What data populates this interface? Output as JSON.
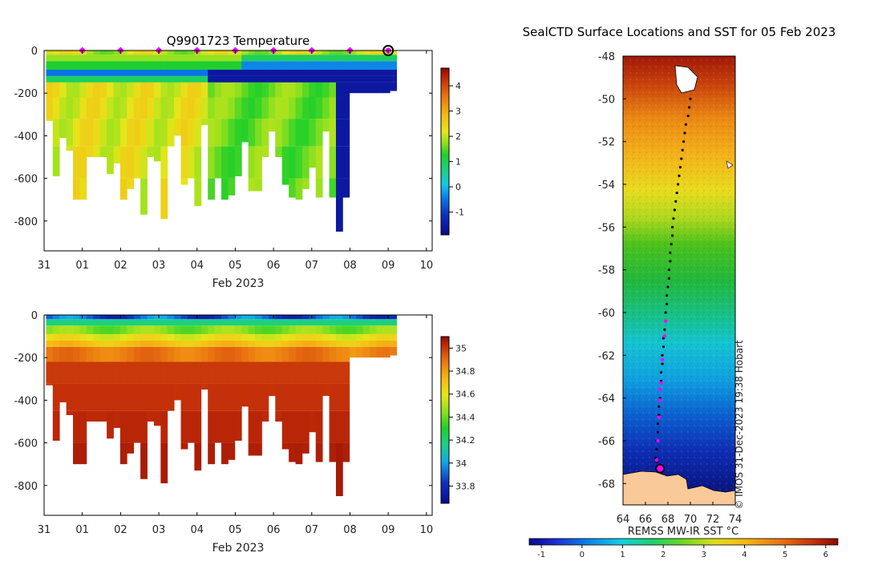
{
  "colors": {
    "land": "#f9c99a",
    "track_points": "#000000",
    "surface_markers": "#ff00ff",
    "latest_position": "#ff00ff"
  },
  "chart_data": [
    {
      "type": "heatmap",
      "id": "temperature-section",
      "title": "Q9901723  Temperature",
      "xlabel": "Feb 2023",
      "ylabel": "",
      "x_tick_labels": [
        "31",
        "01",
        "02",
        "03",
        "04",
        "05",
        "06",
        "07",
        "08",
        "09",
        "10"
      ],
      "x_ticks_day": [
        0,
        1,
        2,
        3,
        4,
        5,
        6,
        7,
        8,
        9,
        10
      ],
      "xlim_day": [
        0,
        10.15
      ],
      "y_ticks": [
        0,
        -200,
        -400,
        -600,
        -800
      ],
      "ylim": [
        -940,
        0
      ],
      "colorbar_ticks": [
        -1,
        0,
        1,
        2,
        3,
        4
      ],
      "colorbar_range": [
        -1.9,
        4.7
      ],
      "surface_marker_days": [
        1,
        2,
        3,
        4,
        5,
        6,
        7,
        8,
        9
      ],
      "profile_max_depths": [
        330,
        590,
        410,
        470,
        700,
        700,
        500,
        500,
        500,
        580,
        530,
        700,
        650,
        600,
        770,
        500,
        520,
        790,
        450,
        400,
        630,
        600,
        730,
        350,
        700,
        600,
        700,
        680,
        590,
        430,
        660,
        660,
        500,
        380,
        500,
        630,
        690,
        700,
        650,
        550,
        690,
        380,
        690,
        850,
        690,
        200,
        200,
        200,
        200,
        200,
        200,
        190
      ],
      "bottom_layer": {
        "warm_until_day": 4.2,
        "cold_from_day": 4.2
      }
    },
    {
      "type": "heatmap",
      "id": "salinity-section",
      "title": "",
      "xlabel": "Feb 2023",
      "ylabel": "",
      "x_tick_labels": [
        "31",
        "01",
        "02",
        "03",
        "04",
        "05",
        "06",
        "07",
        "08",
        "09",
        "10"
      ],
      "x_ticks_day": [
        0,
        1,
        2,
        3,
        4,
        5,
        6,
        7,
        8,
        9,
        10
      ],
      "xlim_day": [
        0,
        10.15
      ],
      "y_ticks": [
        0,
        -200,
        -400,
        -600,
        -800
      ],
      "ylim": [
        -940,
        0
      ],
      "colorbar_ticks": [
        33.8,
        34,
        34.2,
        34.4,
        34.6,
        34.8,
        35
      ],
      "colorbar_tick_labels": [
        "33.8",
        "34",
        "34.2",
        "34.4",
        "34.6",
        "34.8",
        "35"
      ],
      "colorbar_range": [
        33.65,
        35.1
      ]
    },
    {
      "type": "heatmap",
      "id": "sst-map",
      "title": "SealCTD Surface Locations and SST for 05 Feb 2023",
      "xlabel": "",
      "ylabel": "",
      "x_ticks": [
        64,
        66,
        68,
        70,
        72,
        74
      ],
      "xlim": [
        64,
        74
      ],
      "y_ticks": [
        -48,
        -50,
        -52,
        -54,
        -56,
        -58,
        -60,
        -62,
        -64,
        -66,
        -68
      ],
      "ylim": [
        -69,
        -48
      ],
      "credit": "© IMOS 31-Dec-2023 19:38 Hobart",
      "colorbar_label": "REMSS MW-IR SST °C",
      "colorbar_ticks": [
        -1,
        0,
        1,
        2,
        3,
        4,
        5,
        6
      ],
      "colorbar_range": [
        -1.3,
        6.3
      ],
      "track": [
        [
          70.0,
          -50.0
        ],
        [
          69.9,
          -50.4
        ],
        [
          69.8,
          -50.8
        ],
        [
          69.6,
          -51.2
        ],
        [
          69.5,
          -51.6
        ],
        [
          69.4,
          -52.0
        ],
        [
          69.3,
          -52.4
        ],
        [
          69.2,
          -52.8
        ],
        [
          69.1,
          -53.2
        ],
        [
          69.0,
          -53.6
        ],
        [
          68.9,
          -54.0
        ],
        [
          68.8,
          -54.4
        ],
        [
          68.7,
          -54.8
        ],
        [
          68.6,
          -55.2
        ],
        [
          68.5,
          -55.6
        ],
        [
          68.4,
          -56.0
        ],
        [
          68.4,
          -56.4
        ],
        [
          68.3,
          -56.8
        ],
        [
          68.2,
          -57.2
        ],
        [
          68.2,
          -57.6
        ],
        [
          68.1,
          -58.0
        ],
        [
          68.1,
          -58.4
        ],
        [
          68.0,
          -58.8
        ],
        [
          67.9,
          -59.2
        ],
        [
          67.9,
          -59.6
        ],
        [
          67.8,
          -60.0
        ],
        [
          67.8,
          -60.4
        ],
        [
          67.7,
          -60.8
        ],
        [
          67.6,
          -61.2
        ],
        [
          67.6,
          -61.6
        ],
        [
          67.5,
          -62.0
        ],
        [
          67.5,
          -62.4
        ],
        [
          67.4,
          -62.8
        ],
        [
          67.4,
          -63.2
        ],
        [
          67.3,
          -63.6
        ],
        [
          67.3,
          -64.0
        ],
        [
          67.2,
          -64.4
        ],
        [
          67.2,
          -64.8
        ],
        [
          67.1,
          -65.2
        ],
        [
          67.1,
          -65.6
        ],
        [
          67.0,
          -66.0
        ],
        [
          67.0,
          -66.4
        ],
        [
          66.9,
          -66.8
        ],
        [
          67.0,
          -67.0
        ]
      ],
      "surface_markers": [
        [
          67.8,
          -60.4
        ],
        [
          67.7,
          -61.1
        ],
        [
          67.5,
          -62.2
        ],
        [
          67.4,
          -63.3
        ],
        [
          67.3,
          -63.6
        ],
        [
          67.3,
          -64.1
        ],
        [
          67.2,
          -64.9
        ],
        [
          67.1,
          -66.0
        ],
        [
          67.0,
          -66.9
        ]
      ],
      "latest_position": [
        67.3,
        -67.3
      ]
    }
  ]
}
